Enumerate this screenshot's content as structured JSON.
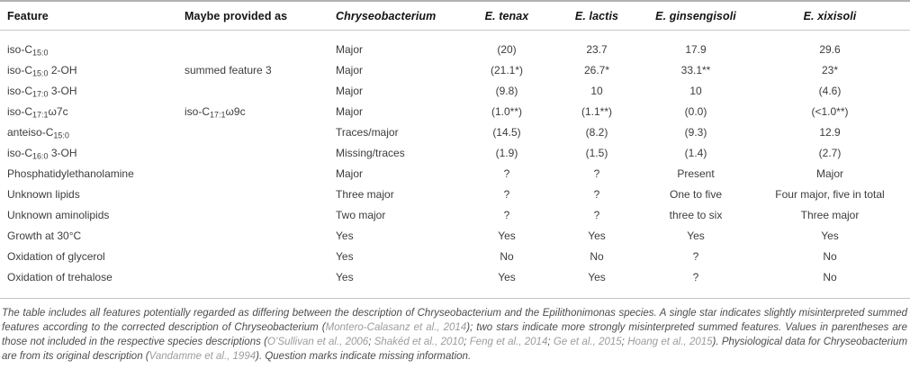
{
  "colors": {
    "citation_link": "#9c9c9c",
    "rule_gray": "#b2b2b2",
    "body_text": "#3c3c3c"
  },
  "table": {
    "columns": [
      {
        "key": "feature",
        "label": "Feature",
        "align": "left",
        "italic": false
      },
      {
        "key": "maybe-provided-as",
        "label": "Maybe provided as",
        "align": "left",
        "italic": false
      },
      {
        "key": "chryseobacterium",
        "label": "Chryseobacterium",
        "align": "left",
        "italic": true
      },
      {
        "key": "e-tenax",
        "label": "E. tenax",
        "align": "center",
        "italic": true
      },
      {
        "key": "e-lactis",
        "label": "E. lactis",
        "align": "center",
        "italic": true
      },
      {
        "key": "e-ginsengisoli",
        "label": "E. ginsengisoli",
        "align": "center",
        "italic": true
      },
      {
        "key": "e-xixisoli",
        "label": "E. xixisoli",
        "align": "center",
        "italic": true
      }
    ],
    "rows": [
      [
        "iso-C{15:0}",
        "",
        "Major",
        "(20)",
        "23.7",
        "17.9",
        "29.6"
      ],
      [
        "iso-C{15:0} 2-OH",
        "summed feature 3",
        "Major",
        "(21.1*)",
        "26.7*",
        "33.1**",
        "23*"
      ],
      [
        "iso-C{17:0} 3-OH",
        "",
        "Major",
        "(9.8)",
        "10",
        "10",
        "(4.6)"
      ],
      [
        "iso-C{17:1}ω7c",
        "iso-C{17:1}ω9c",
        "Major",
        "(1.0**)",
        "(1.1**)",
        "(0.0)",
        "(<1.0**)"
      ],
      [
        "anteiso-C{15:0}",
        "",
        "Traces/major",
        "(14.5)",
        "(8.2)",
        "(9.3)",
        "12.9"
      ],
      [
        "iso-C{16:0} 3-OH",
        "",
        "Missing/traces",
        "(1.9)",
        "(1.5)",
        "(1.4)",
        "(2.7)"
      ],
      [
        "Phosphatidylethanolamine",
        "",
        "Major",
        "?",
        "?",
        "Present",
        "Major"
      ],
      [
        "Unknown lipids",
        "",
        "Three major",
        "?",
        "?",
        "One to five",
        "Four major, five in total"
      ],
      [
        "Unknown aminolipids",
        "",
        "Two major",
        "?",
        "?",
        "three to six",
        "Three major"
      ],
      [
        "Growth at 30°C",
        "",
        "Yes",
        "Yes",
        "Yes",
        "Yes",
        "Yes"
      ],
      [
        "Oxidation of glycerol",
        "",
        "Yes",
        "No",
        "No",
        "?",
        "No"
      ],
      [
        "Oxidation of trehalose",
        "",
        "Yes",
        "Yes",
        "Yes",
        "?",
        "No"
      ]
    ]
  },
  "footnote": {
    "segments": [
      {
        "type": "text",
        "text": "The table includes all features potentially regarded as differing between the description of Chryseobacterium and the Epilithonimonas species. A single star indicates slightly misinterpreted summed features according to the corrected description of Chryseobacterium ("
      },
      {
        "type": "cite",
        "text": "Montero-Calasanz et al., 2014"
      },
      {
        "type": "text",
        "text": "); two stars indicate more strongly misinterpreted summed features. Values in parentheses are those not included in the respective species descriptions ("
      },
      {
        "type": "cite",
        "text": "O’Sullivan et al., 2006"
      },
      {
        "type": "text",
        "text": "; "
      },
      {
        "type": "cite",
        "text": "Shakéd et al., 2010"
      },
      {
        "type": "text",
        "text": "; "
      },
      {
        "type": "cite",
        "text": "Feng et al., 2014"
      },
      {
        "type": "text",
        "text": "; "
      },
      {
        "type": "cite",
        "text": "Ge et al., 2015"
      },
      {
        "type": "text",
        "text": "; "
      },
      {
        "type": "cite",
        "text": "Hoang et al., 2015"
      },
      {
        "type": "text",
        "text": "). Physiological data for Chryseobacterium are from its original description ("
      },
      {
        "type": "cite",
        "text": "Vandamme et al., 1994"
      },
      {
        "type": "text",
        "text": "). Question marks indicate missing information."
      }
    ]
  }
}
